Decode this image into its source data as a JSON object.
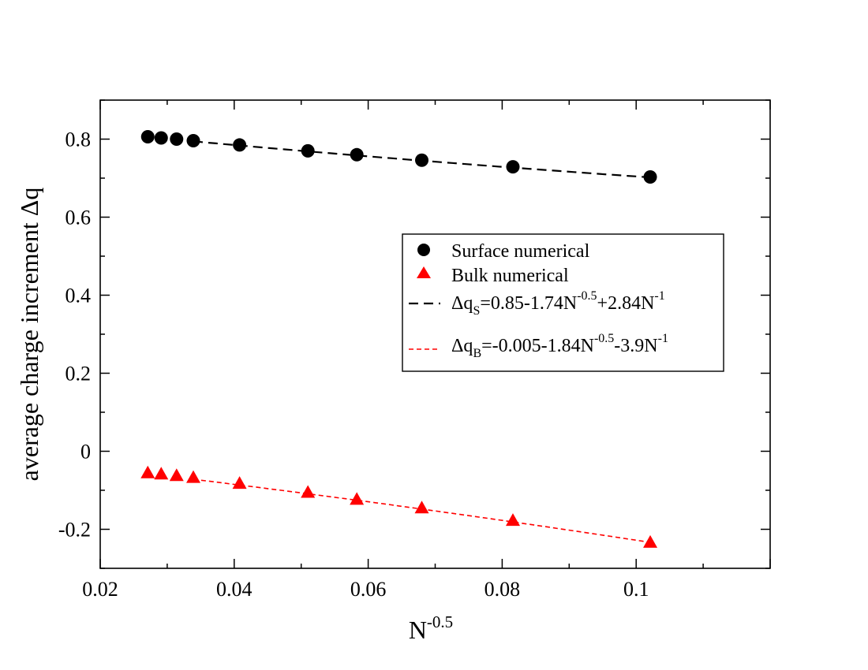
{
  "chart_data": {
    "type": "scatter",
    "title": "",
    "xlabel_base": "N",
    "xlabel_sup": "-0.5",
    "ylabel": "average charge increment Δq",
    "xlim": [
      0.02,
      0.12
    ],
    "ylim": [
      -0.3,
      0.9
    ],
    "x_ticks": [
      0.02,
      0.04,
      0.06,
      0.08,
      0.1
    ],
    "x_tick_labels": [
      "0.02",
      "0.04",
      "0.06",
      "0.08",
      "0.1"
    ],
    "y_ticks": [
      -0.2,
      0,
      0.2,
      0.4,
      0.6,
      0.8
    ],
    "y_tick_labels": [
      "-0.2",
      "0",
      "0.2",
      "0.4",
      "0.6",
      "0.8"
    ],
    "grid": false,
    "legend_position": "center-right",
    "series": [
      {
        "name": "Surface numerical",
        "marker": "circle",
        "color": "#000000",
        "x": [
          0.0271,
          0.0291,
          0.0314,
          0.0339,
          0.0408,
          0.051,
          0.0583,
          0.068,
          0.0816,
          0.1021
        ],
        "y": [
          0.806,
          0.803,
          0.8,
          0.796,
          0.785,
          0.77,
          0.76,
          0.746,
          0.729,
          0.703
        ]
      },
      {
        "name": "Bulk numerical",
        "marker": "triangle",
        "color": "#ff0000",
        "x": [
          0.0271,
          0.0291,
          0.0314,
          0.0339,
          0.0408,
          0.051,
          0.0583,
          0.068,
          0.0816,
          0.1021
        ],
        "y": [
          -0.055,
          -0.058,
          -0.062,
          -0.067,
          -0.082,
          -0.105,
          -0.123,
          -0.145,
          -0.177,
          -0.233
        ]
      }
    ],
    "fits": [
      {
        "name": "Δq_S=0.85-1.74N^-0.5+2.84N^-1",
        "color": "#000000",
        "dash": "long",
        "a": 0.85,
        "b": -1.74,
        "c": 2.84,
        "x_range": [
          0.0339,
          0.1021
        ],
        "legend_parts": [
          "Δq",
          "S",
          "=0.85-1.74N",
          "-0.5",
          "+2.84N",
          "-1"
        ]
      },
      {
        "name": "Δq_B=-0.005-1.84N^-0.5-3.9N^-1",
        "color": "#ff0000",
        "dash": "short",
        "a": -0.005,
        "b": -1.84,
        "c": -3.9,
        "x_range": [
          0.0339,
          0.1021
        ],
        "legend_parts": [
          "Δq",
          "B",
          "=-0.005-1.84N",
          "-0.5",
          "-3.9N",
          "-1"
        ]
      }
    ]
  }
}
